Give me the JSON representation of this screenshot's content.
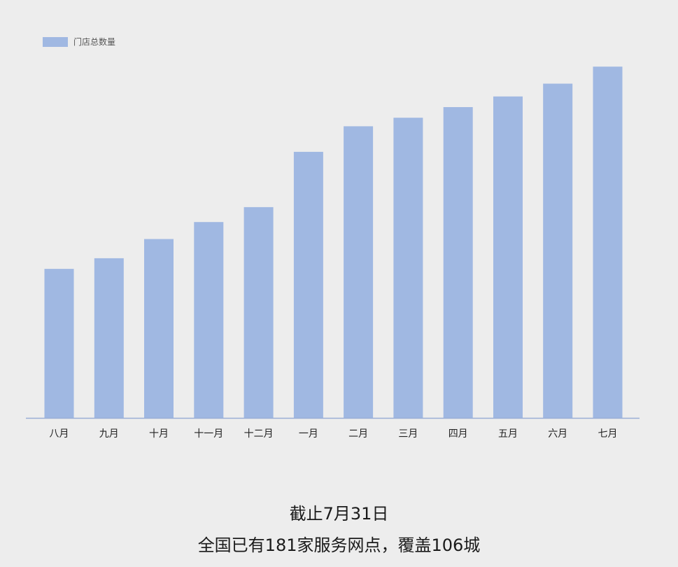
{
  "chart_data": {
    "type": "bar",
    "title": "",
    "xlabel": "",
    "ylabel": "",
    "legend": {
      "position": "top-left",
      "entries": [
        "门店总数量"
      ]
    },
    "grid": false,
    "categories": [
      "八月",
      "九月",
      "十月",
      "十一月",
      "十二月",
      "一月",
      "二月",
      "三月",
      "四月",
      "五月",
      "六月",
      "七月"
    ],
    "series": [
      {
        "name": "门店总数量",
        "color": "#a0b8e2",
        "values": [
          70,
          75,
          84,
          92,
          99,
          125,
          137,
          141,
          146,
          151,
          157,
          165
        ]
      }
    ],
    "ylim": [
      0,
      170
    ],
    "axis_color": "#9aaed6"
  },
  "caption": {
    "line1": "截止7月31日",
    "line2": "全国已有181家服务网点，覆盖106城"
  }
}
